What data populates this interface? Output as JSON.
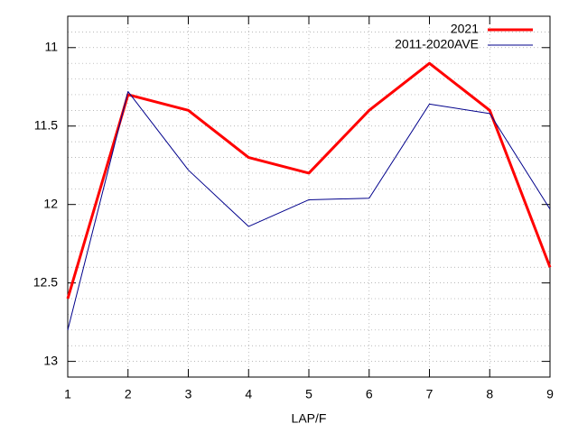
{
  "chart_data": {
    "type": "line",
    "x_label": "LAP/F",
    "x": [
      1,
      2,
      3,
      4,
      5,
      6,
      7,
      8,
      9
    ],
    "series": [
      {
        "name": "2021",
        "color": "#ff0000",
        "values": [
          12.6,
          11.3,
          11.4,
          11.7,
          11.8,
          11.4,
          11.1,
          11.4,
          12.4
        ]
      },
      {
        "name": "2011-2020AVE",
        "color": "#00008b",
        "values": [
          12.8,
          11.28,
          11.78,
          12.14,
          11.97,
          11.96,
          11.36,
          11.42,
          12.03
        ]
      }
    ],
    "xlim": [
      1,
      9
    ],
    "xticks": [
      1,
      2,
      3,
      4,
      5,
      6,
      7,
      8,
      9
    ],
    "ylim": [
      10.8,
      13.1
    ],
    "y_inverted": true,
    "yticks": [
      11,
      11.5,
      12,
      12.5,
      13
    ],
    "y_minor_ticks": [
      10.9,
      11.1,
      11.2,
      11.3,
      11.4,
      11.6,
      11.7,
      11.8,
      11.9,
      12.1,
      12.2,
      12.3,
      12.4,
      12.6,
      12.7,
      12.8,
      12.9
    ],
    "grid": true,
    "legend": "top-right"
  }
}
